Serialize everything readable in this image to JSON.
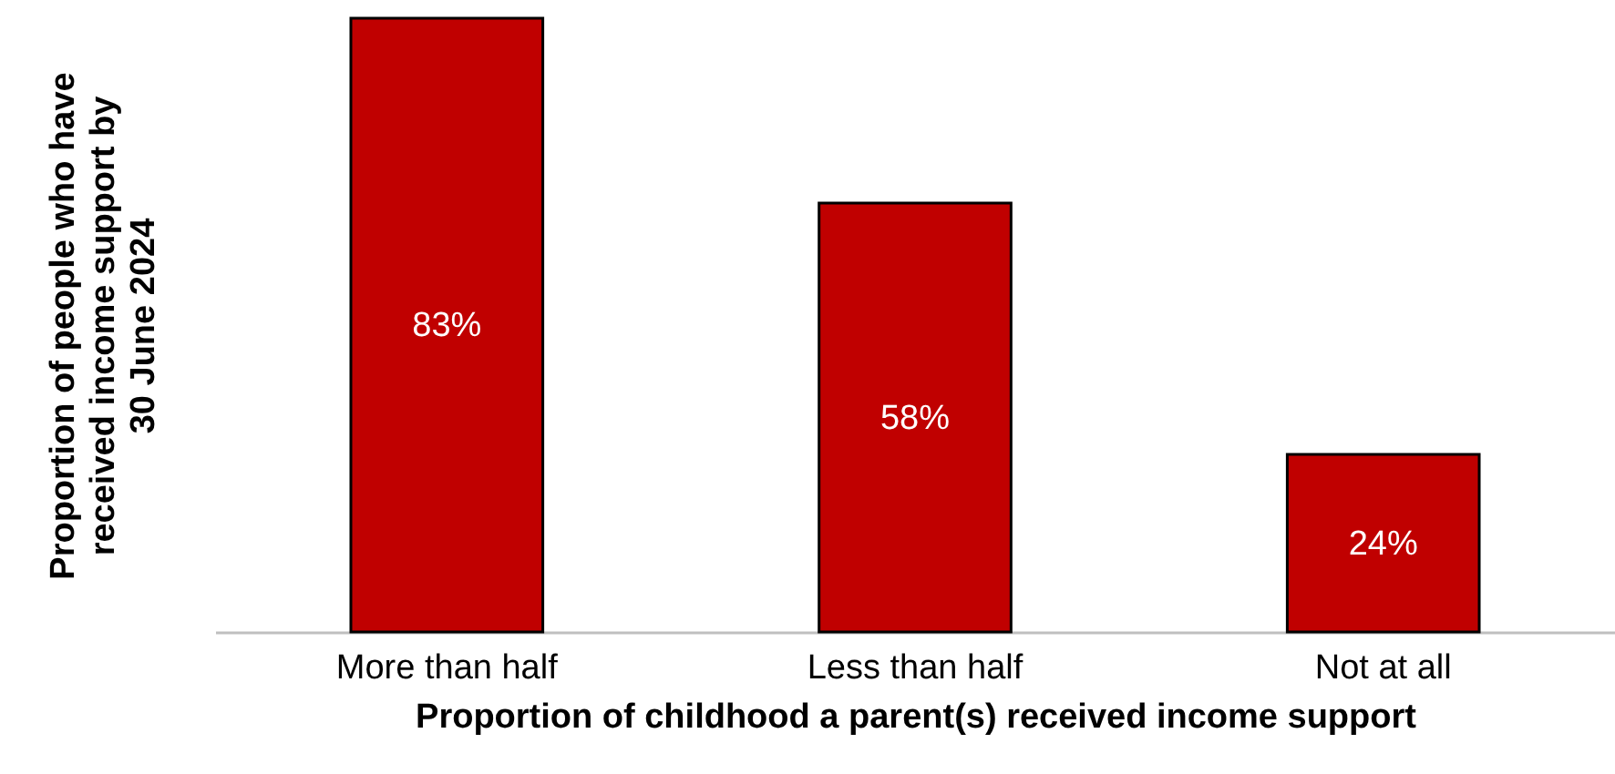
{
  "chart_data": {
    "type": "bar",
    "categories": [
      "More than half",
      "Less than half",
      "Not at all"
    ],
    "values": [
      83,
      58,
      24
    ],
    "value_labels": [
      "83%",
      "58%",
      "24%"
    ],
    "color": "#c00000",
    "ylim": [
      0,
      83
    ],
    "xlabel": "Proportion of childhood a parent(s) received income support",
    "ylabel": "Proportion of people who have\nreceived income support by\n30 June 2024"
  }
}
